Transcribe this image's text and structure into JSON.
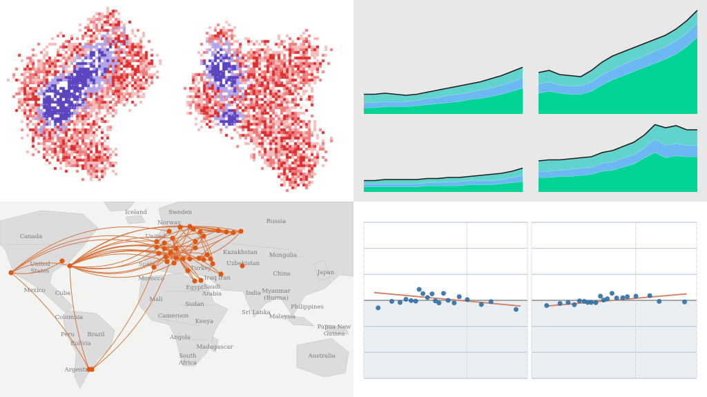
{
  "colors": {
    "pixel_map": {
      "strong_purple": "#5e45c0",
      "light_purple": "#b3a6e8",
      "strong_red": "#dc2f2f",
      "mid_red": "#ee7d7d",
      "light_red": "#f6bcbc"
    },
    "area": {
      "green": "#00d395",
      "blue": "#6cb8f2",
      "teal": "#5fd3cc",
      "line": "#1e1e1e",
      "background": "#e8e8e8"
    },
    "flow_map": {
      "land": "#dcdcdc",
      "sea": "#f3f3f1",
      "border": "#bdbdbd",
      "arc": "#d9733a",
      "node": "#e0570f"
    },
    "scatter": {
      "point": "#2f6fa5",
      "trend": "#d4846a",
      "negative_fill": "#eaeff3",
      "grid": "#b9cadb"
    }
  },
  "flow_map": {
    "labels": [
      "Iceland",
      "Sweden",
      "Norway",
      "Russia",
      "Canada",
      "United",
      "Kazakhstan",
      "Mongolia",
      "United",
      "States",
      "Uzbekistan",
      "Turkey",
      "China",
      "Japan",
      "Spain",
      "Iraq",
      "Iran",
      "Morocco",
      "Mexico",
      "Cuba",
      "Egypt",
      "Saudi",
      "Arabia",
      "India",
      "Myanmar",
      "(Burma)",
      "Mali",
      "Sudan",
      "Philippines",
      "Sri Lanka",
      "Malaysia",
      "Colombia",
      "Cameroon",
      "Kenya",
      "Peru",
      "Brazil",
      "Bolivia",
      "Angola",
      "Madagascar",
      "Papua New",
      "Guinea",
      "Australia",
      "South",
      "Africa",
      "Argentina"
    ]
  },
  "chart_data": [
    {
      "type": "area",
      "stacked": true,
      "layout": "2x2 small multiples",
      "panels": [
        {
          "series": [
            {
              "values": [
                6,
                6,
                7,
                7,
                7,
                8,
                9,
                10,
                11,
                12,
                14,
                15,
                17,
                19,
                22,
                25
              ]
            },
            {
              "values": [
                5,
                5,
                5,
                5,
                5,
                5,
                6,
                6,
                7,
                7,
                7,
                8,
                8,
                9,
                9,
                10
              ]
            },
            {
              "values": [
                8,
                8,
                8,
                7,
                6,
                6,
                6,
                7,
                7,
                8,
                8,
                8,
                9,
                9,
                10,
                10
              ]
            }
          ]
        },
        {
          "series": [
            {
              "values": [
                20,
                22,
                20,
                19,
                19,
                22,
                28,
                33,
                37,
                41,
                45,
                49,
                53,
                58,
                65,
                74
              ]
            },
            {
              "values": [
                9,
                9,
                8,
                8,
                8,
                9,
                10,
                10,
                11,
                11,
                11,
                12,
                12,
                13,
                13,
                14
              ]
            },
            {
              "values": [
                11,
                11,
                10,
                10,
                9,
                11,
                12,
                13,
                12,
                12,
                12,
                11,
                11,
                11,
                12,
                12
              ]
            }
          ]
        },
        {
          "series": [
            {
              "values": [
                5,
                5,
                5,
                5,
                5,
                5,
                6,
                6,
                6,
                6,
                7,
                7,
                7,
                8,
                9,
                10
              ]
            },
            {
              "values": [
                3,
                3,
                3,
                3,
                3,
                3,
                3,
                3,
                4,
                4,
                4,
                4,
                4,
                4,
                5,
                6
              ]
            },
            {
              "values": [
                3,
                3,
                4,
                4,
                4,
                4,
                4,
                4,
                4,
                4,
                4,
                5,
                6,
                6,
                6,
                7
              ]
            }
          ]
        },
        {
          "series": [
            {
              "values": [
                14,
                14,
                15,
                15,
                16,
                17,
                20,
                21,
                24,
                27,
                33,
                38,
                33,
                35,
                34,
                34
              ]
            },
            {
              "values": [
                6,
                6,
                6,
                7,
                7,
                7,
                8,
                8,
                9,
                9,
                10,
                13,
                12,
                12,
                11,
                11
              ]
            },
            {
              "values": [
                10,
                11,
                10,
                10,
                10,
                10,
                10,
                11,
                11,
                12,
                12,
                14,
                17,
                17,
                15,
                15
              ]
            }
          ]
        }
      ],
      "ylim": [
        0,
        100
      ],
      "grid": false
    },
    {
      "type": "scatter",
      "grid": true,
      "xlim": [
        0,
        100
      ],
      "ylim": [
        -3,
        3
      ],
      "vertical_guides": [
        0,
        63,
        100
      ],
      "panels": [
        {
          "x": [
            8.7,
            17.1,
            22.1,
            25.7,
            28.9,
            31.7,
            33.8,
            36.1,
            38.9,
            41.7,
            43.7,
            45.9,
            48.7,
            51.5,
            55.2,
            58.3,
            63.2,
            71.8,
            77.7,
            93.0
          ],
          "y": [
            -0.29,
            -0.04,
            -0.08,
            0.04,
            -0.01,
            -0.03,
            0.42,
            0.26,
            0.11,
            0.25,
            -0.02,
            -0.1,
            0.27,
            0,
            -0.1,
            0.14,
            0.03,
            -0.16,
            -0.05,
            -0.35
          ],
          "trend": {
            "x": [
              6.3,
              95.8
            ],
            "y": [
              0.3,
              -0.22
            ]
          }
        },
        {
          "x": [
            9.1,
            17.2,
            22.1,
            25.9,
            29.0,
            31.9,
            34.0,
            36.1,
            38.9,
            41.7,
            43.6,
            45.9,
            48.7,
            51.5,
            55.2,
            58.0,
            63.2,
            71.6,
            77.3,
            92.7
          ],
          "y": [
            -0.2,
            -0.12,
            -0.08,
            -0.17,
            -0.02,
            -0.04,
            -0.08,
            -0.08,
            -0.09,
            0.16,
            0.01,
            0.06,
            0.27,
            0.09,
            0.1,
            0.14,
            0.16,
            0.18,
            -0.04,
            -0.06
          ],
          "trend": {
            "x": [
              9.1,
              94.0
            ],
            "y": [
              -0.22,
              0.25
            ]
          }
        }
      ]
    }
  ]
}
